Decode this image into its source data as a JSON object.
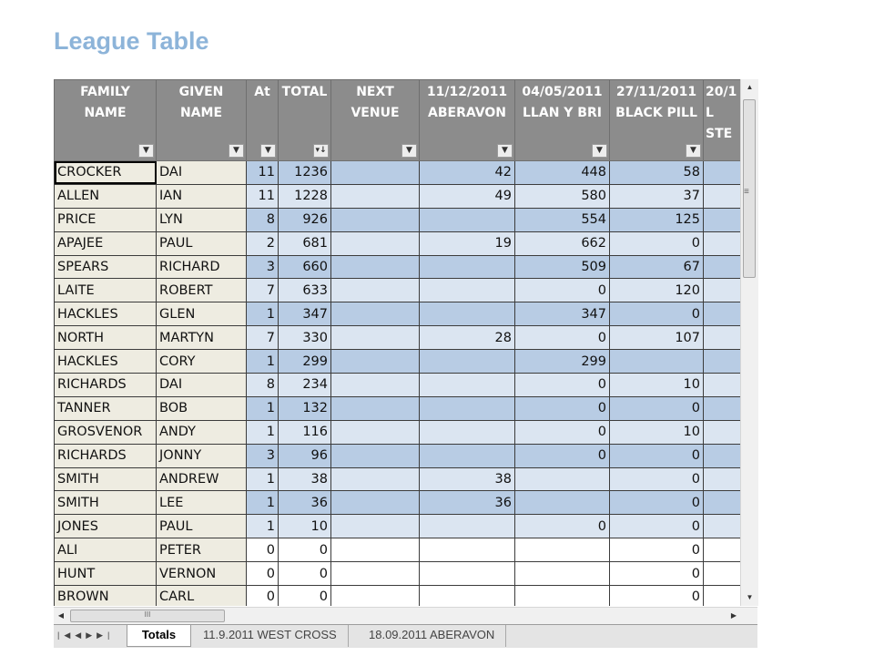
{
  "page_title": "League Table",
  "columns": [
    {
      "label": "FAMILY\nNAME",
      "filter_icon": "dropdown-arrow"
    },
    {
      "label": "GIVEN\nNAME",
      "filter_icon": "dropdown-arrow"
    },
    {
      "label": "At",
      "filter_icon": "dropdown-arrow"
    },
    {
      "label": "TOTAL",
      "filter_icon": "sort-descending"
    },
    {
      "label": "NEXT\nVENUE",
      "filter_icon": "dropdown-arrow"
    },
    {
      "label": "11/12/2011\nABERAVON",
      "filter_icon": "dropdown-arrow"
    },
    {
      "label": "04/05/2011\nLLAN Y BRI",
      "filter_icon": "dropdown-arrow"
    },
    {
      "label": "27/11/2011\nBLACK PILL",
      "filter_icon": "dropdown-arrow"
    },
    {
      "label": "20/1\nL\nSTE",
      "filter_icon": ""
    }
  ],
  "rows": [
    {
      "family": "CROCKER",
      "given": "DAI",
      "at": "11",
      "total": "1236",
      "next": "",
      "aberavon": "42",
      "llan": "448",
      "blackpill": "58"
    },
    {
      "family": "ALLEN",
      "given": "IAN",
      "at": "11",
      "total": "1228",
      "next": "",
      "aberavon": "49",
      "llan": "580",
      "blackpill": "37"
    },
    {
      "family": "PRICE",
      "given": "LYN",
      "at": "8",
      "total": "926",
      "next": "",
      "aberavon": "",
      "llan": "554",
      "blackpill": "125"
    },
    {
      "family": "APAJEE",
      "given": "PAUL",
      "at": "2",
      "total": "681",
      "next": "",
      "aberavon": "19",
      "llan": "662",
      "blackpill": "0"
    },
    {
      "family": "SPEARS",
      "given": "RICHARD",
      "at": "3",
      "total": "660",
      "next": "",
      "aberavon": "",
      "llan": "509",
      "blackpill": "67"
    },
    {
      "family": "LAITE",
      "given": "ROBERT",
      "at": "7",
      "total": "633",
      "next": "",
      "aberavon": "",
      "llan": "0",
      "blackpill": "120"
    },
    {
      "family": "HACKLES",
      "given": "GLEN",
      "at": "1",
      "total": "347",
      "next": "",
      "aberavon": "",
      "llan": "347",
      "blackpill": "0"
    },
    {
      "family": "NORTH",
      "given": "MARTYN",
      "at": "7",
      "total": "330",
      "next": "",
      "aberavon": "28",
      "llan": "0",
      "blackpill": "107"
    },
    {
      "family": "HACKLES",
      "given": "CORY",
      "at": "1",
      "total": "299",
      "next": "",
      "aberavon": "",
      "llan": "299",
      "blackpill": ""
    },
    {
      "family": "RICHARDS",
      "given": "DAI",
      "at": "8",
      "total": "234",
      "next": "",
      "aberavon": "",
      "llan": "0",
      "blackpill": "10"
    },
    {
      "family": "TANNER",
      "given": "BOB",
      "at": "1",
      "total": "132",
      "next": "",
      "aberavon": "",
      "llan": "0",
      "blackpill": "0"
    },
    {
      "family": "GROSVENOR",
      "given": "ANDY",
      "at": "1",
      "total": "116",
      "next": "",
      "aberavon": "",
      "llan": "0",
      "blackpill": "10"
    },
    {
      "family": "RICHARDS",
      "given": "JONNY",
      "at": "3",
      "total": "96",
      "next": "",
      "aberavon": "",
      "llan": "0",
      "blackpill": "0"
    },
    {
      "family": "SMITH",
      "given": "ANDREW",
      "at": "1",
      "total": "38",
      "next": "",
      "aberavon": "38",
      "llan": "",
      "blackpill": "0"
    },
    {
      "family": "SMITH",
      "given": "LEE",
      "at": "1",
      "total": "36",
      "next": "",
      "aberavon": "36",
      "llan": "",
      "blackpill": "0"
    },
    {
      "family": "JONES",
      "given": "PAUL",
      "at": "1",
      "total": "10",
      "next": "",
      "aberavon": "",
      "llan": "0",
      "blackpill": "0"
    },
    {
      "family": "ALI",
      "given": "PETER",
      "at": "0",
      "total": "0",
      "next": "",
      "aberavon": "",
      "llan": "",
      "blackpill": "0"
    },
    {
      "family": "HUNT",
      "given": "VERNON",
      "at": "0",
      "total": "0",
      "next": "",
      "aberavon": "",
      "llan": "",
      "blackpill": "0"
    },
    {
      "family": "BROWN",
      "given": "CARL",
      "at": "0",
      "total": "0",
      "next": "",
      "aberavon": "",
      "llan": "",
      "blackpill": "0"
    }
  ],
  "colors": {
    "header_bg": "#8c8c8c",
    "name_bg": "#eeece1",
    "band_dark": "#b8cce4",
    "band_light": "#dbe5f1",
    "title_color": "#8db4d9"
  },
  "scrollbar": {
    "h_thumb_grip": "III"
  },
  "sheet_tabs": {
    "nav_icons": [
      "first-sheet-icon",
      "prev-sheet-icon",
      "next-sheet-icon",
      "last-sheet-icon"
    ],
    "tabs": [
      {
        "label": "Totals",
        "active": true
      },
      {
        "label": "11.9.2011 WEST CROSS",
        "active": false
      },
      {
        "label": "18.09.2011 ABERAVON",
        "active": false
      }
    ]
  }
}
